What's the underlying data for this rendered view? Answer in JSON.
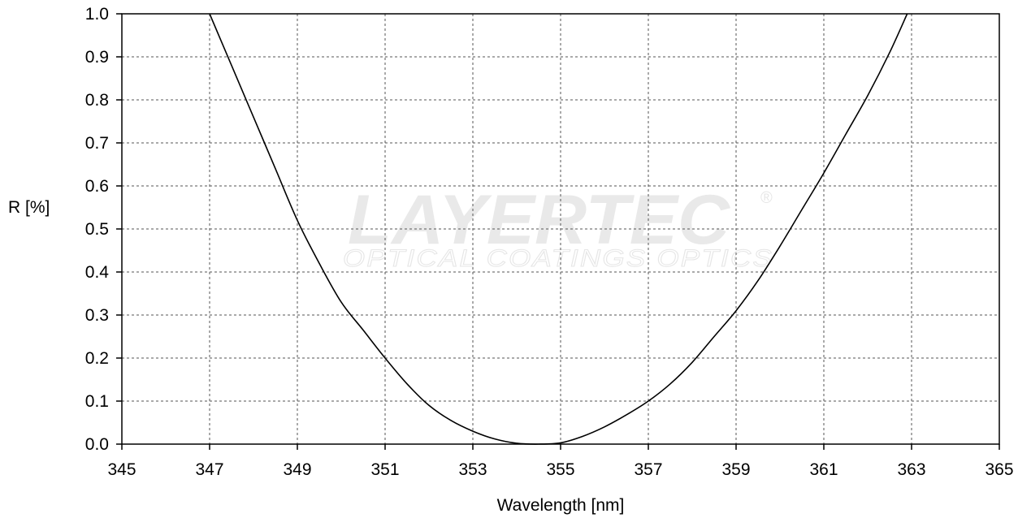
{
  "chart_data": {
    "type": "line",
    "xlabel": "Wavelength [nm]",
    "ylabel": "R [%]",
    "xlim": [
      345,
      365
    ],
    "ylim": [
      0.0,
      1.0
    ],
    "x_ticks": [
      345,
      347,
      349,
      351,
      353,
      355,
      357,
      359,
      361,
      363,
      365
    ],
    "y_ticks": [
      "0.0",
      "0.1",
      "0.2",
      "0.3",
      "0.4",
      "0.5",
      "0.6",
      "0.7",
      "0.8",
      "0.9",
      "1.0"
    ],
    "grid": true,
    "series": [
      {
        "x": [
          347.0,
          347.5,
          348.0,
          348.5,
          349.0,
          349.5,
          350.0,
          350.5,
          351.0,
          351.5,
          352.0,
          352.5,
          353.0,
          353.5,
          354.0,
          354.5,
          355.0,
          355.5,
          356.0,
          356.5,
          357.0,
          357.5,
          358.0,
          358.5,
          359.0,
          359.5,
          360.0,
          360.5,
          361.0,
          361.5,
          362.0,
          362.5,
          362.9
        ],
        "y": [
          1.0,
          0.88,
          0.76,
          0.64,
          0.52,
          0.42,
          0.33,
          0.265,
          0.2,
          0.14,
          0.09,
          0.055,
          0.03,
          0.012,
          0.002,
          0.0,
          0.003,
          0.018,
          0.04,
          0.068,
          0.1,
          0.14,
          0.19,
          0.25,
          0.31,
          0.38,
          0.46,
          0.545,
          0.63,
          0.72,
          0.81,
          0.91,
          1.0
        ],
        "color": "#000000"
      }
    ]
  },
  "watermark": {
    "brand": "LAYERTEC",
    "tagline": "OPTICAL COATINGS  OPTICS",
    "registered": "®"
  }
}
